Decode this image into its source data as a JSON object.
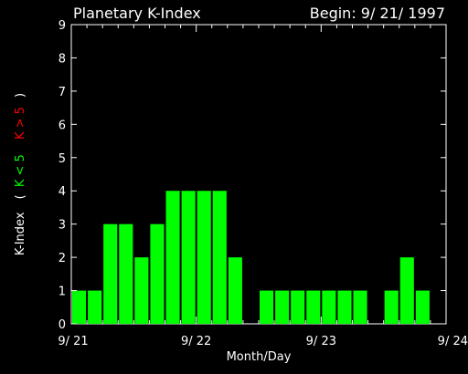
{
  "chart_data": {
    "type": "bar",
    "title": "Planetary K-Index",
    "subtitle": "Begin: 9/ 21/ 1997",
    "xlabel": "Month/Day",
    "ylabel_parts": [
      "K-Index",
      "(",
      "K < 5",
      "K > 5",
      ")"
    ],
    "ylim": [
      0,
      9
    ],
    "yticks": [
      "0",
      "1",
      "2",
      "3",
      "4",
      "5",
      "6",
      "7",
      "8",
      "9"
    ],
    "xticks": [
      "9/ 21",
      "9/ 22",
      "9/ 23",
      "9/ 24"
    ],
    "bars_per_day": 8,
    "total_slots": 24,
    "values": [
      1,
      1,
      3,
      3,
      2,
      3,
      4,
      4,
      4,
      4,
      2,
      null,
      1,
      1,
      1,
      1,
      1,
      1,
      1,
      null,
      1,
      2,
      1,
      null
    ],
    "colors": {
      "low": "#00ff00",
      "high": "#ff0000",
      "axis": "#ffffff"
    }
  }
}
